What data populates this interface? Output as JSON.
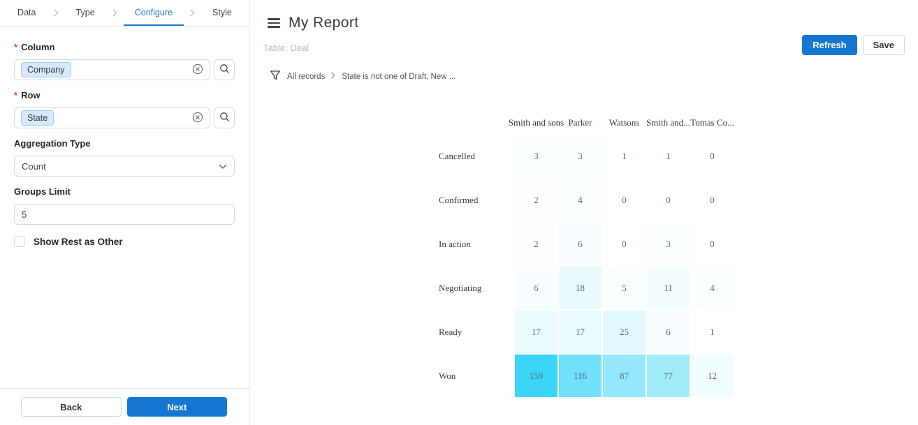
{
  "colors": {
    "accent": "#1677d2",
    "chip_bg": "#d6eaff",
    "chip_border": "#9fccf3",
    "heat_min_color": "#ffffff",
    "heat_max_color": "#3dd5f7"
  },
  "sidebar": {
    "steps": [
      {
        "label": "Data",
        "active": false
      },
      {
        "label": "Type",
        "active": false
      },
      {
        "label": "Configure",
        "active": true
      },
      {
        "label": "Style",
        "active": false
      }
    ],
    "column_field": {
      "label": "Column",
      "chip": "Company"
    },
    "row_field": {
      "label": "Row",
      "chip": "State"
    },
    "aggregation": {
      "label": "Aggregation Type",
      "value": "Count"
    },
    "groups_limit": {
      "label": "Groups Limit",
      "value": "5"
    },
    "show_rest": {
      "label": "Show Rest as Other",
      "checked": false
    },
    "back_label": "Back",
    "next_label": "Next"
  },
  "header": {
    "title": "My Report",
    "subtitle": "Table: Deal",
    "refresh_label": "Refresh",
    "save_label": "Save"
  },
  "filter": {
    "all_records": "All records",
    "condition": "State is not one of Draft, New ..."
  },
  "chart_data": {
    "type": "heatmap",
    "title": "",
    "columns": [
      "Smith and sons",
      "Parker",
      "Watsons",
      "Smith and...",
      "Tomas Co..."
    ],
    "rows": [
      "Cancelled",
      "Confirmed",
      "In action",
      "Negotiating",
      "Ready",
      "Won"
    ],
    "values": [
      [
        3,
        3,
        1,
        1,
        0
      ],
      [
        2,
        4,
        0,
        0,
        0
      ],
      [
        2,
        6,
        0,
        3,
        0
      ],
      [
        6,
        18,
        5,
        11,
        4
      ],
      [
        17,
        17,
        25,
        6,
        1
      ],
      [
        159,
        116,
        87,
        77,
        12
      ]
    ],
    "value_range": [
      0,
      159
    ],
    "legend": "none",
    "color_scale": {
      "min": "#ffffff",
      "max": "#3dd5f7"
    }
  }
}
